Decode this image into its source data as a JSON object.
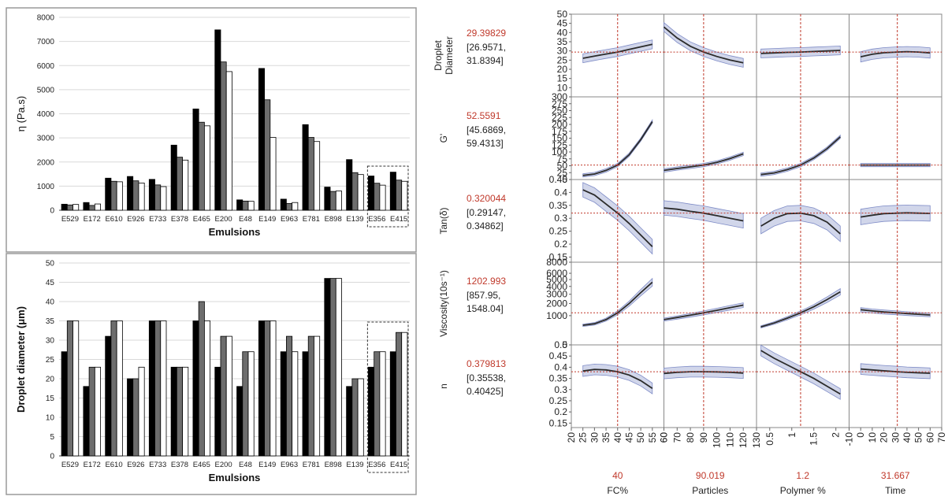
{
  "chart_data": [
    {
      "type": "bar",
      "xlabel": "Emulsions",
      "ylabel": "η (Pa.s)",
      "ylim": [
        0,
        8000
      ],
      "yticks": [
        0,
        1000,
        2000,
        3000,
        4000,
        5000,
        6000,
        7000,
        8000
      ],
      "grid": true,
      "categories": [
        "E529",
        "E172",
        "E610",
        "E926",
        "E733",
        "E378",
        "E465",
        "E200",
        "E48",
        "E149",
        "E963",
        "E781",
        "E898",
        "E139",
        "E356",
        "E415"
      ],
      "series": [
        {
          "color": "#000000",
          "values": [
            250,
            320,
            1330,
            1400,
            1280,
            2700,
            4200,
            7480,
            430,
            5880,
            460,
            3550,
            960,
            2100,
            1420,
            1580
          ]
        },
        {
          "color": "#6d6d6d",
          "values": [
            220,
            200,
            1200,
            1220,
            1050,
            2200,
            3650,
            6150,
            380,
            4580,
            280,
            3020,
            780,
            1560,
            1120,
            1250
          ]
        },
        {
          "color": "#ffffff",
          "values": [
            240,
            260,
            1180,
            1130,
            980,
            2080,
            3500,
            5750,
            370,
            3020,
            320,
            2850,
            800,
            1480,
            1040,
            1200
          ]
        }
      ],
      "highlight_categories": [
        "E356",
        "E415"
      ]
    },
    {
      "type": "bar",
      "xlabel": "Emulsions",
      "ylabel": "Droplet diameter (μm)",
      "ylim": [
        0,
        50
      ],
      "yticks": [
        0,
        5,
        10,
        15,
        20,
        25,
        30,
        35,
        40,
        45,
        50
      ],
      "grid": true,
      "categories": [
        "E529",
        "E172",
        "E610",
        "E926",
        "E733",
        "E378",
        "E465",
        "E200",
        "E48",
        "E149",
        "E963",
        "E781",
        "E898",
        "E139",
        "E356",
        "E415"
      ],
      "series": [
        {
          "color": "#000000",
          "values": [
            27,
            18,
            31,
            20,
            35,
            23,
            35,
            23,
            18,
            35,
            27,
            27,
            46,
            18,
            23,
            27
          ]
        },
        {
          "color": "#6d6d6d",
          "values": [
            35,
            23,
            35,
            20,
            35,
            23,
            40,
            31,
            27,
            35,
            31,
            31,
            46,
            20,
            27,
            32
          ]
        },
        {
          "color": "#ffffff",
          "values": [
            35,
            23,
            35,
            23,
            35,
            23,
            35,
            31,
            27,
            35,
            27,
            31,
            46,
            20,
            27,
            32
          ]
        }
      ],
      "highlight_categories": [
        "E356",
        "E415"
      ]
    },
    {
      "type": "line",
      "chart_kind": "prediction profiler",
      "factors": [
        {
          "name": "FC%",
          "current": "40",
          "current_value": 40,
          "range": [
            20,
            60
          ],
          "ticks": [
            "20",
            "25",
            "30",
            "35",
            "40",
            "45",
            "50",
            "55",
            "60"
          ]
        },
        {
          "name": "Particles",
          "current": "90.019",
          "current_value": 90.019,
          "range": [
            60,
            130
          ],
          "ticks": [
            "60",
            "70",
            "80",
            "90",
            "100",
            "110",
            "120",
            "130"
          ]
        },
        {
          "name": "Polymer  %",
          "current": "1.2",
          "current_value": 1.2,
          "range": [
            0.2,
            2.3
          ],
          "ticks": [
            "0.5",
            "1",
            "1.5",
            "2"
          ],
          "tick_values": [
            0.5,
            1,
            1.5,
            2
          ]
        },
        {
          "name": "Time",
          "current": "31.667",
          "current_value": 31.667,
          "range": [
            -10,
            70
          ],
          "ticks": [
            "-10",
            "0",
            "10",
            "20",
            "30",
            "40",
            "50",
            "60",
            "70"
          ]
        }
      ],
      "responses": [
        {
          "label_lines": [
            "Droplet",
            "Diameter"
          ],
          "value": "29.39829",
          "ci_lines": [
            "[26.9571,",
            "31.8394]"
          ],
          "current_value": 29.39829,
          "ylim": [
            5,
            50
          ],
          "yticks": [
            "10",
            "15",
            "20",
            "25",
            "30",
            "35",
            "40",
            "45",
            "50"
          ],
          "ytick_values": [
            10,
            15,
            20,
            25,
            30,
            35,
            40,
            45,
            50
          ],
          "series": [
            {
              "x": [
                25,
                30,
                35,
                40,
                45,
                50,
                55
              ],
              "y": [
                26,
                27.2,
                28.3,
                29.4,
                30.8,
                32.2,
                33.6
              ],
              "band": 2.4
            },
            {
              "x": [
                60,
                70,
                80,
                90,
                100,
                110,
                120
              ],
              "y": [
                43,
                37,
                32.5,
                29.4,
                27,
                25,
                23.5
              ],
              "band": 2.4
            },
            {
              "x": [
                0.3,
                0.6,
                0.9,
                1.2,
                1.5,
                1.8,
                2.1
              ],
              "y": [
                28.6,
                28.9,
                29.2,
                29.4,
                29.7,
                30.0,
                30.3
              ],
              "band": 2.4
            },
            {
              "x": [
                0,
                10,
                20,
                31.667,
                40,
                50,
                60
              ],
              "y": [
                26.8,
                28.2,
                29.0,
                29.4,
                29.6,
                29.4,
                28.9
              ],
              "band": 2.8
            }
          ]
        },
        {
          "label_lines": [
            "G'"
          ],
          "value": "52.5591",
          "ci_lines": [
            "[45.6869,",
            "59.4313]"
          ],
          "current_value": 52.5591,
          "ylim": [
            0,
            300
          ],
          "yticks": [
            "0",
            "25",
            "50",
            "75",
            "100",
            "125",
            "150",
            "175",
            "200",
            "225",
            "250",
            "275",
            "300"
          ],
          "ytick_values": [
            0,
            25,
            50,
            75,
            100,
            125,
            150,
            175,
            200,
            225,
            250,
            275,
            300
          ],
          "series": [
            {
              "x": [
                25,
                30,
                35,
                40,
                45,
                50,
                55
              ],
              "y": [
                15,
                20,
                33,
                52.6,
                90,
                145,
                210
              ],
              "band": 6
            },
            {
              "x": [
                60,
                70,
                80,
                90,
                100,
                110,
                120
              ],
              "y": [
                33,
                40,
                46,
                52.6,
                62,
                76,
                93
              ],
              "band": 6
            },
            {
              "x": [
                0.3,
                0.6,
                0.9,
                1.2,
                1.5,
                1.8,
                2.1
              ],
              "y": [
                18,
                24,
                36,
                52.6,
                78,
                112,
                155
              ],
              "band": 6
            },
            {
              "x": [
                0,
                10,
                20,
                31.667,
                40,
                50,
                60
              ],
              "y": [
                52.6,
                52.6,
                52.6,
                52.6,
                52.6,
                52.6,
                52.6
              ],
              "band": 6
            }
          ]
        },
        {
          "label_lines": [
            "Tan(δ)"
          ],
          "value": "0.320044",
          "ci_lines": [
            "[0.29147,",
            "0.34862]"
          ],
          "current_value": 0.320044,
          "ylim": [
            0.13,
            0.45
          ],
          "yticks": [
            "0.15",
            "0.2",
            "0.25",
            "0.3",
            "0.35",
            "0.4",
            "0.45"
          ],
          "ytick_values": [
            0.15,
            0.2,
            0.25,
            0.3,
            0.35,
            0.4,
            0.45
          ],
          "series": [
            {
              "x": [
                25,
                30,
                35,
                40,
                45,
                50,
                55
              ],
              "y": [
                0.41,
                0.39,
                0.355,
                0.32,
                0.28,
                0.235,
                0.19
              ],
              "band": 0.028
            },
            {
              "x": [
                60,
                70,
                80,
                90,
                100,
                110,
                120
              ],
              "y": [
                0.34,
                0.335,
                0.327,
                0.32,
                0.31,
                0.3,
                0.29
              ],
              "band": 0.028
            },
            {
              "x": [
                0.3,
                0.6,
                0.9,
                1.2,
                1.5,
                1.8,
                2.1
              ],
              "y": [
                0.27,
                0.3,
                0.318,
                0.32,
                0.31,
                0.285,
                0.24
              ],
              "band": 0.03
            },
            {
              "x": [
                0,
                10,
                20,
                31.667,
                40,
                50,
                60
              ],
              "y": [
                0.305,
                0.312,
                0.318,
                0.32,
                0.321,
                0.32,
                0.319
              ],
              "band": 0.03
            }
          ]
        },
        {
          "label_lines": [
            "Viscosity(10s⁻¹)"
          ],
          "value": "1202.993",
          "ci_lines": [
            "[857.95,",
            "1548.04]"
          ],
          "current_value": 1202.993,
          "ylim": [
            0,
            8000
          ],
          "scale": "sqrt",
          "yticks": [
            "0",
            "1000",
            "2000",
            "3000",
            "4000",
            "5000",
            "6000",
            "8000"
          ],
          "ytick_values": [
            0,
            1000,
            2000,
            3000,
            4000,
            5000,
            6000,
            8000
          ],
          "series": [
            {
              "x": [
                25,
                30,
                35,
                40,
                45,
                50,
                55
              ],
              "y": [
                450,
                520,
                750,
                1203,
                2000,
                3200,
                4600
              ],
              "band": 0.12
            },
            {
              "x": [
                60,
                70,
                80,
                90,
                100,
                110,
                120
              ],
              "y": [
                750,
                880,
                1030,
                1203,
                1400,
                1620,
                1850
              ],
              "band": 0.12
            },
            {
              "x": [
                0.3,
                0.6,
                0.9,
                1.2,
                1.5,
                1.8,
                2.1
              ],
              "y": [
                380,
                560,
                840,
                1203,
                1700,
                2400,
                3300
              ],
              "band": 0.12
            },
            {
              "x": [
                0,
                10,
                20,
                31.667,
                40,
                50,
                60
              ],
              "y": [
                1450,
                1350,
                1270,
                1203,
                1150,
                1100,
                1050
              ],
              "band": 0.12
            }
          ]
        },
        {
          "label_lines": [
            "n"
          ],
          "value": "0.379813",
          "ci_lines": [
            "[0.35538,",
            "0.40425]"
          ],
          "current_value": 0.379813,
          "ylim": [
            0.13,
            0.5
          ],
          "yticks": [
            "0.15",
            "0.2",
            "0.25",
            "0.3",
            "0.35",
            "0.4",
            "0.45",
            "0.5"
          ],
          "ytick_values": [
            0.15,
            0.2,
            0.25,
            0.3,
            0.35,
            0.4,
            0.45,
            0.5
          ],
          "series": [
            {
              "x": [
                25,
                30,
                35,
                40,
                45,
                50,
                55
              ],
              "y": [
                0.383,
                0.39,
                0.388,
                0.38,
                0.365,
                0.34,
                0.305
              ],
              "band": 0.024
            },
            {
              "x": [
                60,
                70,
                80,
                90,
                100,
                110,
                120
              ],
              "y": [
                0.372,
                0.377,
                0.38,
                0.38,
                0.379,
                0.377,
                0.374
              ],
              "band": 0.024
            },
            {
              "x": [
                0.3,
                0.6,
                0.9,
                1.2,
                1.5,
                1.8,
                2.1
              ],
              "y": [
                0.475,
                0.44,
                0.41,
                0.38,
                0.35,
                0.315,
                0.28
              ],
              "band": 0.024
            },
            {
              "x": [
                0,
                10,
                20,
                31.667,
                40,
                50,
                60
              ],
              "y": [
                0.392,
                0.388,
                0.384,
                0.38,
                0.377,
                0.375,
                0.373
              ],
              "band": 0.024
            }
          ]
        }
      ]
    }
  ]
}
